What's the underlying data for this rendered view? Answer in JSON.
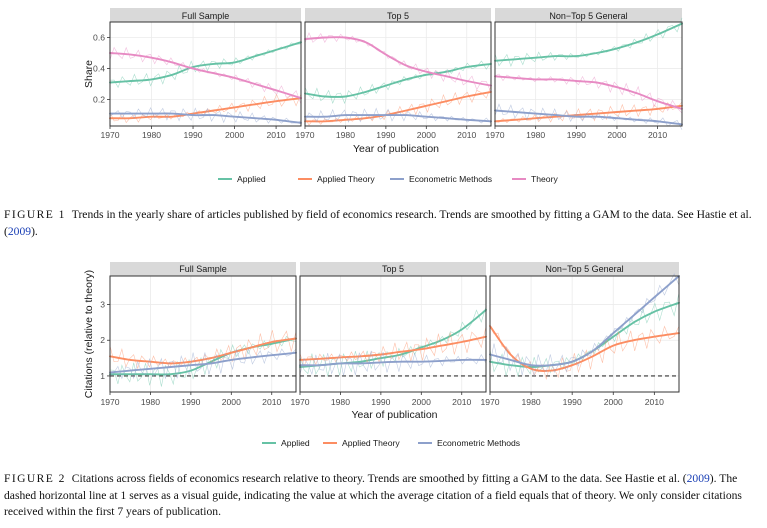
{
  "chart_data": [
    {
      "type": "line",
      "panels": [
        "Full Sample",
        "Top 5",
        "Non−Top 5 General"
      ],
      "xlabel": "Year of publication",
      "ylabel": "Share",
      "xlim": [
        1970,
        2016
      ],
      "ylim": [
        0.03,
        0.7
      ],
      "yticks": [
        0.2,
        0.4,
        0.6
      ],
      "ytick_labels": [
        "0.2",
        "0.4",
        "0.6"
      ],
      "xticks": [
        1970,
        1980,
        1990,
        2000,
        2010
      ],
      "x": [
        1970,
        1975,
        1980,
        1985,
        1990,
        1995,
        2000,
        2005,
        2010,
        2016
      ],
      "series": [
        {
          "name": "Applied",
          "color": "#66c2a5",
          "values": [
            [
              0.31,
              0.32,
              0.33,
              0.36,
              0.41,
              0.43,
              0.44,
              0.48,
              0.52,
              0.57
            ],
            [
              0.24,
              0.22,
              0.22,
              0.25,
              0.29,
              0.33,
              0.36,
              0.38,
              0.41,
              0.43
            ],
            [
              0.45,
              0.46,
              0.47,
              0.48,
              0.48,
              0.5,
              0.53,
              0.57,
              0.62,
              0.69
            ]
          ]
        },
        {
          "name": "Applied Theory",
          "color": "#fc8d62",
          "values": [
            [
              0.08,
              0.08,
              0.09,
              0.09,
              0.11,
              0.13,
              0.15,
              0.17,
              0.19,
              0.21
            ],
            [
              0.06,
              0.06,
              0.07,
              0.08,
              0.1,
              0.13,
              0.16,
              0.19,
              0.22,
              0.25
            ],
            [
              0.06,
              0.07,
              0.08,
              0.09,
              0.1,
              0.11,
              0.12,
              0.13,
              0.14,
              0.16
            ]
          ]
        },
        {
          "name": "Econometric Methods",
          "color": "#8da0cb",
          "values": [
            [
              0.11,
              0.11,
              0.11,
              0.11,
              0.1,
              0.1,
              0.09,
              0.08,
              0.07,
              0.05
            ],
            [
              0.09,
              0.09,
              0.1,
              0.1,
              0.1,
              0.1,
              0.09,
              0.08,
              0.07,
              0.06
            ],
            [
              0.13,
              0.12,
              0.11,
              0.1,
              0.09,
              0.09,
              0.08,
              0.07,
              0.06,
              0.04
            ]
          ]
        },
        {
          "name": "Theory",
          "color": "#e78ac3",
          "values": [
            [
              0.5,
              0.49,
              0.47,
              0.44,
              0.4,
              0.37,
              0.34,
              0.3,
              0.26,
              0.21
            ],
            [
              0.59,
              0.6,
              0.6,
              0.57,
              0.49,
              0.42,
              0.38,
              0.35,
              0.32,
              0.29
            ],
            [
              0.35,
              0.34,
              0.33,
              0.33,
              0.32,
              0.31,
              0.28,
              0.24,
              0.19,
              0.14
            ]
          ]
        }
      ],
      "legend": "bottom"
    },
    {
      "type": "line",
      "panels": [
        "Full Sample",
        "Top 5",
        "Non−Top 5 General"
      ],
      "xlabel": "Year of publication",
      "ylabel": "Citations (relative to theory)",
      "xlim": [
        1970,
        2016
      ],
      "ylim": [
        0.55,
        3.8
      ],
      "yticks": [
        1,
        2,
        3
      ],
      "ytick_labels": [
        "1",
        "2",
        "3"
      ],
      "xticks": [
        1970,
        1980,
        1990,
        2000,
        2010
      ],
      "reference_line": 1,
      "x": [
        1970,
        1975,
        1980,
        1985,
        1990,
        1995,
        2000,
        2005,
        2010,
        2016
      ],
      "series": [
        {
          "name": "Applied",
          "color": "#66c2a5",
          "values": [
            [
              1.05,
              1.05,
              1.05,
              1.05,
              1.15,
              1.4,
              1.65,
              1.8,
              1.9,
              2.05
            ],
            [
              1.25,
              1.3,
              1.35,
              1.4,
              1.5,
              1.6,
              1.8,
              2.0,
              2.3,
              2.85
            ],
            [
              1.4,
              1.3,
              1.25,
              1.3,
              1.4,
              1.7,
              2.1,
              2.5,
              2.8,
              3.05
            ]
          ]
        },
        {
          "name": "Applied Theory",
          "color": "#fc8d62",
          "values": [
            [
              1.55,
              1.45,
              1.4,
              1.35,
              1.4,
              1.5,
              1.65,
              1.8,
              1.95,
              2.05
            ],
            [
              1.45,
              1.48,
              1.52,
              1.55,
              1.6,
              1.68,
              1.75,
              1.85,
              1.95,
              2.1
            ],
            [
              2.4,
              1.6,
              1.2,
              1.15,
              1.3,
              1.55,
              1.85,
              2.0,
              2.1,
              2.2
            ]
          ]
        },
        {
          "name": "Econometric Methods",
          "color": "#8da0cb",
          "values": [
            [
              1.1,
              1.15,
              1.2,
              1.25,
              1.3,
              1.35,
              1.45,
              1.52,
              1.58,
              1.65
            ],
            [
              1.3,
              1.3,
              1.35,
              1.35,
              1.38,
              1.4,
              1.4,
              1.42,
              1.45,
              1.45
            ],
            [
              1.6,
              1.45,
              1.3,
              1.3,
              1.4,
              1.7,
              2.2,
              2.7,
              3.2,
              3.8
            ]
          ]
        }
      ],
      "legend": "bottom"
    }
  ],
  "captions": {
    "fig1_label": "FIGURE 1",
    "fig1_text": "Trends in the yearly share of articles published by field of economics research. Trends are smoothed by fitting a GAM to the data. See Hastie et al. (",
    "fig1_link": "2009",
    "fig1_end": ").",
    "fig2_label": "FIGURE 2",
    "fig2_text": "Citations across fields of economics research relative to theory. Trends are smoothed by fitting a GAM to the data. See Hastie et al. (",
    "fig2_link": "2009",
    "fig2_end": "). The dashed horizontal line at 1 serves as a visual guide, indicating the value at which the average citation of a field equals that of theory. We only consider citations received within the first 7 years of publication."
  }
}
